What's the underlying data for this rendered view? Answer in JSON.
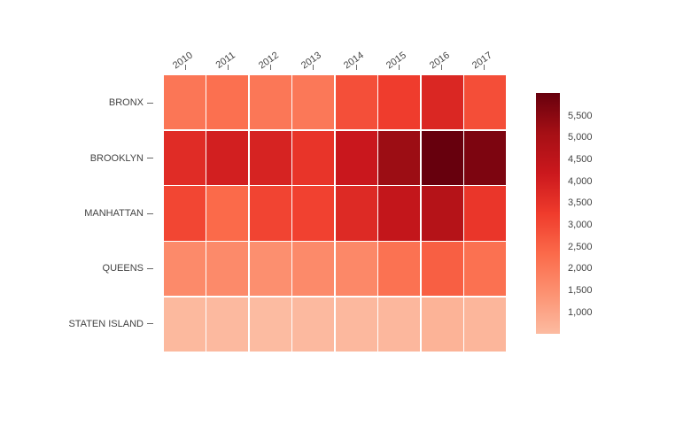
{
  "chart_data": {
    "type": "heatmap",
    "title": "",
    "xlabel": "",
    "ylabel": "",
    "x": [
      "2010",
      "2011",
      "2012",
      "2013",
      "2014",
      "2015",
      "2016",
      "2017"
    ],
    "y": [
      "BRONX",
      "BROOKLYN",
      "MANHATTAN",
      "QUEENS",
      "STATEN ISLAND"
    ],
    "z": [
      [
        2070,
        2210,
        2050,
        2020,
        2880,
        3240,
        3800,
        2900
      ],
      [
        3650,
        4010,
        3900,
        3440,
        4240,
        5230,
        6020,
        5700
      ],
      [
        3050,
        2350,
        3090,
        3150,
        3720,
        4370,
        4710,
        3400
      ],
      [
        1610,
        1610,
        1500,
        1610,
        1660,
        2160,
        2560,
        2180
      ],
      [
        560,
        545,
        510,
        555,
        575,
        595,
        700,
        620
      ]
    ],
    "zmin": 510,
    "zmax": 6020,
    "grid": false,
    "legend_position": "right",
    "colorscale": [
      [
        0.0,
        "#fcbba1"
      ],
      [
        0.1667,
        "#fc9272"
      ],
      [
        0.3333,
        "#fb6a4a"
      ],
      [
        0.5,
        "#ef3b2c"
      ],
      [
        0.6667,
        "#cb181d"
      ],
      [
        0.8333,
        "#a50f15"
      ],
      [
        1.0,
        "#67000d"
      ]
    ],
    "colorbar_tick_values": [
      5500,
      5000,
      4500,
      4000,
      3500,
      3000,
      2500,
      2000,
      1500,
      1000
    ],
    "colorbar_tick_labels": [
      "5,500",
      "5,000",
      "4,500",
      "4,000",
      "3,500",
      "3,000",
      "2,500",
      "2,000",
      "1,500",
      "1,000"
    ]
  },
  "colors": {
    "background": "#ffffff",
    "tick_text": "#444444",
    "tick_mark": "#686868",
    "cell_gap": "#ffffff"
  }
}
